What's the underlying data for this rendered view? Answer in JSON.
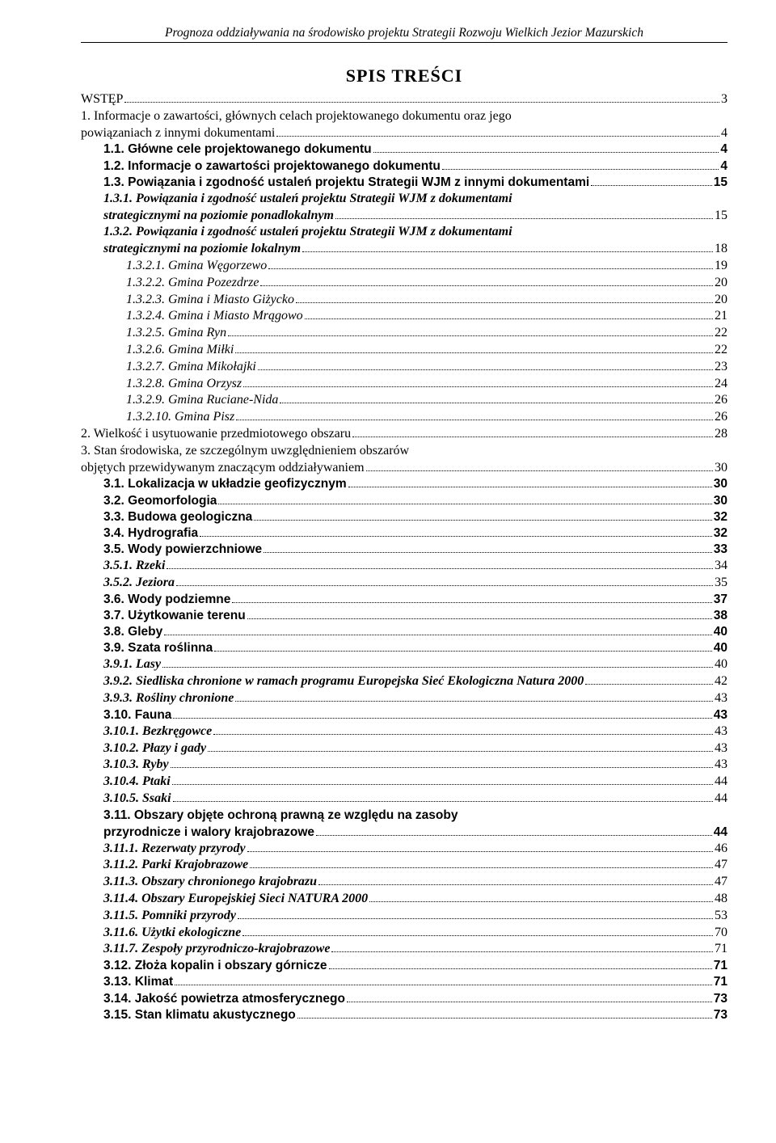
{
  "runningHeader": "Prognoza oddziaływania na środowisko projektu Strategii Rozwoju Wielkich Jezior Mazurskich",
  "tocTitle": "SPIS TREŚCI",
  "entries": [
    {
      "level": "lvl0",
      "style": "plain",
      "label": "WSTĘP",
      "page": "3"
    },
    {
      "level": "lvl0",
      "style": "plain",
      "wrap": true,
      "label": "1. Informacje o zawartości, głównych celach projektowanego dokumentu oraz jego powiązaniach z innymi dokumentami",
      "page": "4"
    },
    {
      "level": "lvl1",
      "label": "1.1. Główne cele projektowanego dokumentu",
      "page": "4"
    },
    {
      "level": "lvl1",
      "label": "1.2. Informacje o zawartości projektowanego dokumentu",
      "page": "4"
    },
    {
      "level": "lvl1",
      "label": "1.3. Powiązania i zgodność ustaleń projektu Strategii WJM z innymi dokumentami",
      "page": "15"
    },
    {
      "level": "lvl2",
      "wrap": true,
      "label": "1.3.1. Powiązania i zgodność ustaleń projektu Strategii WJM z dokumentami strategicznymi na poziomie ponadlokalnym",
      "page": "15"
    },
    {
      "level": "lvl2",
      "wrap": true,
      "label": "1.3.2. Powiązania i zgodność ustaleń projektu Strategii WJM z dokumentami strategicznymi na poziomie lokalnym",
      "page": "18"
    },
    {
      "level": "lvl3lbl",
      "label": "1.3.2.1. Gmina Węgorzewo",
      "page": "19"
    },
    {
      "level": "lvl3lbl",
      "label": "1.3.2.2. Gmina Pozezdrze",
      "page": "20"
    },
    {
      "level": "lvl3lbl",
      "label": "1.3.2.3. Gmina i Miasto Giżycko",
      "page": "20"
    },
    {
      "level": "lvl3lbl",
      "label": "1.3.2.4. Gmina i Miasto Mrągowo",
      "page": "21"
    },
    {
      "level": "lvl3lbl",
      "label": "1.3.2.5. Gmina Ryn",
      "page": "22"
    },
    {
      "level": "lvl3lbl",
      "label": "1.3.2.6. Gmina Miłki",
      "page": "22"
    },
    {
      "level": "lvl3lbl",
      "label": "1.3.2.7. Gmina Mikołajki",
      "page": "23"
    },
    {
      "level": "lvl3lbl",
      "label": "1.3.2.8. Gmina Orzysz",
      "page": "24"
    },
    {
      "level": "lvl3lbl",
      "label": "1.3.2.9. Gmina Ruciane-Nida",
      "page": "26"
    },
    {
      "level": "lvl3lbl",
      "label": "1.3.2.10. Gmina Pisz",
      "page": "26"
    },
    {
      "level": "lvl0",
      "style": "plain",
      "label": "2. Wielkość i usytuowanie przedmiotowego obszaru",
      "page": "28"
    },
    {
      "level": "lvl0",
      "style": "plain",
      "wrap": true,
      "label": "3. Stan środowiska, ze szczególnym uwzględnieniem obszarów objętych przewidywanym znaczącym oddziaływaniem",
      "page": "30"
    },
    {
      "level": "lvl1",
      "label": "3.1. Lokalizacja w układzie geofizycznym",
      "page": "30"
    },
    {
      "level": "lvl1",
      "label": "3.2. Geomorfologia",
      "page": "30"
    },
    {
      "level": "lvl1",
      "label": "3.3. Budowa geologiczna",
      "page": "32"
    },
    {
      "level": "lvl1",
      "label": "3.4. Hydrografia",
      "page": "32"
    },
    {
      "level": "lvl1",
      "label": "3.5. Wody powierzchniowe",
      "page": "33"
    },
    {
      "level": "lvl2",
      "label": "3.5.1. Rzeki",
      "page": "34"
    },
    {
      "level": "lvl2",
      "label": "3.5.2. Jeziora",
      "page": "35"
    },
    {
      "level": "lvl1",
      "label": "3.6. Wody podziemne",
      "page": "37"
    },
    {
      "level": "lvl1",
      "label": "3.7. Użytkowanie terenu",
      "page": "38"
    },
    {
      "level": "lvl1",
      "label": "3.8. Gleby",
      "page": "40"
    },
    {
      "level": "lvl1",
      "label": "3.9. Szata roślinna",
      "page": "40"
    },
    {
      "level": "lvl2",
      "label": "3.9.1. Lasy",
      "page": "40"
    },
    {
      "level": "lvl2",
      "label": "3.9.2. Siedliska chronione w ramach programu Europejska Sieć Ekologiczna Natura 2000",
      "page": "42"
    },
    {
      "level": "lvl2",
      "label": "3.9.3. Rośliny chronione",
      "page": "43"
    },
    {
      "level": "lvl1",
      "label": "3.10. Fauna",
      "page": "43"
    },
    {
      "level": "lvl2",
      "label": "3.10.1. Bezkręgowce",
      "page": "43"
    },
    {
      "level": "lvl2",
      "label": "3.10.2. Płazy i gady",
      "page": "43"
    },
    {
      "level": "lvl2",
      "label": "3.10.3. Ryby",
      "page": "43"
    },
    {
      "level": "lvl2",
      "label": "3.10.4. Ptaki",
      "page": "44"
    },
    {
      "level": "lvl2",
      "label": "3.10.5. Ssaki",
      "page": "44"
    },
    {
      "level": "lvl1",
      "wrap": true,
      "label": "3.11. Obszary objęte ochroną prawną ze względu na zasoby przyrodnicze i walory krajobrazowe",
      "page": "44"
    },
    {
      "level": "lvl2",
      "label": "3.11.1. Rezerwaty przyrody",
      "page": "46"
    },
    {
      "level": "lvl2",
      "label": "3.11.2. Parki Krajobrazowe",
      "page": "47"
    },
    {
      "level": "lvl2",
      "label": "3.11.3. Obszary chronionego krajobrazu",
      "page": "47"
    },
    {
      "level": "lvl2",
      "label": "3.11.4. Obszary Europejskiej Sieci NATURA 2000",
      "page": "48"
    },
    {
      "level": "lvl2",
      "label": "3.11.5. Pomniki przyrody",
      "page": "53"
    },
    {
      "level": "lvl2",
      "label": "3.11.6. Użytki ekologiczne",
      "page": "70"
    },
    {
      "level": "lvl2",
      "label": "3.11.7. Zespoły przyrodniczo-krajobrazowe",
      "page": "71"
    },
    {
      "level": "lvl1",
      "label": "3.12. Złoża kopalin i obszary górnicze",
      "page": "71"
    },
    {
      "level": "lvl1",
      "label": "3.13. Klimat",
      "page": "71"
    },
    {
      "level": "lvl1",
      "label": "3.14. Jakość powietrza atmosferycznego",
      "page": "73"
    },
    {
      "level": "lvl1",
      "label": "3.15. Stan klimatu akustycznego",
      "page": "73"
    }
  ]
}
